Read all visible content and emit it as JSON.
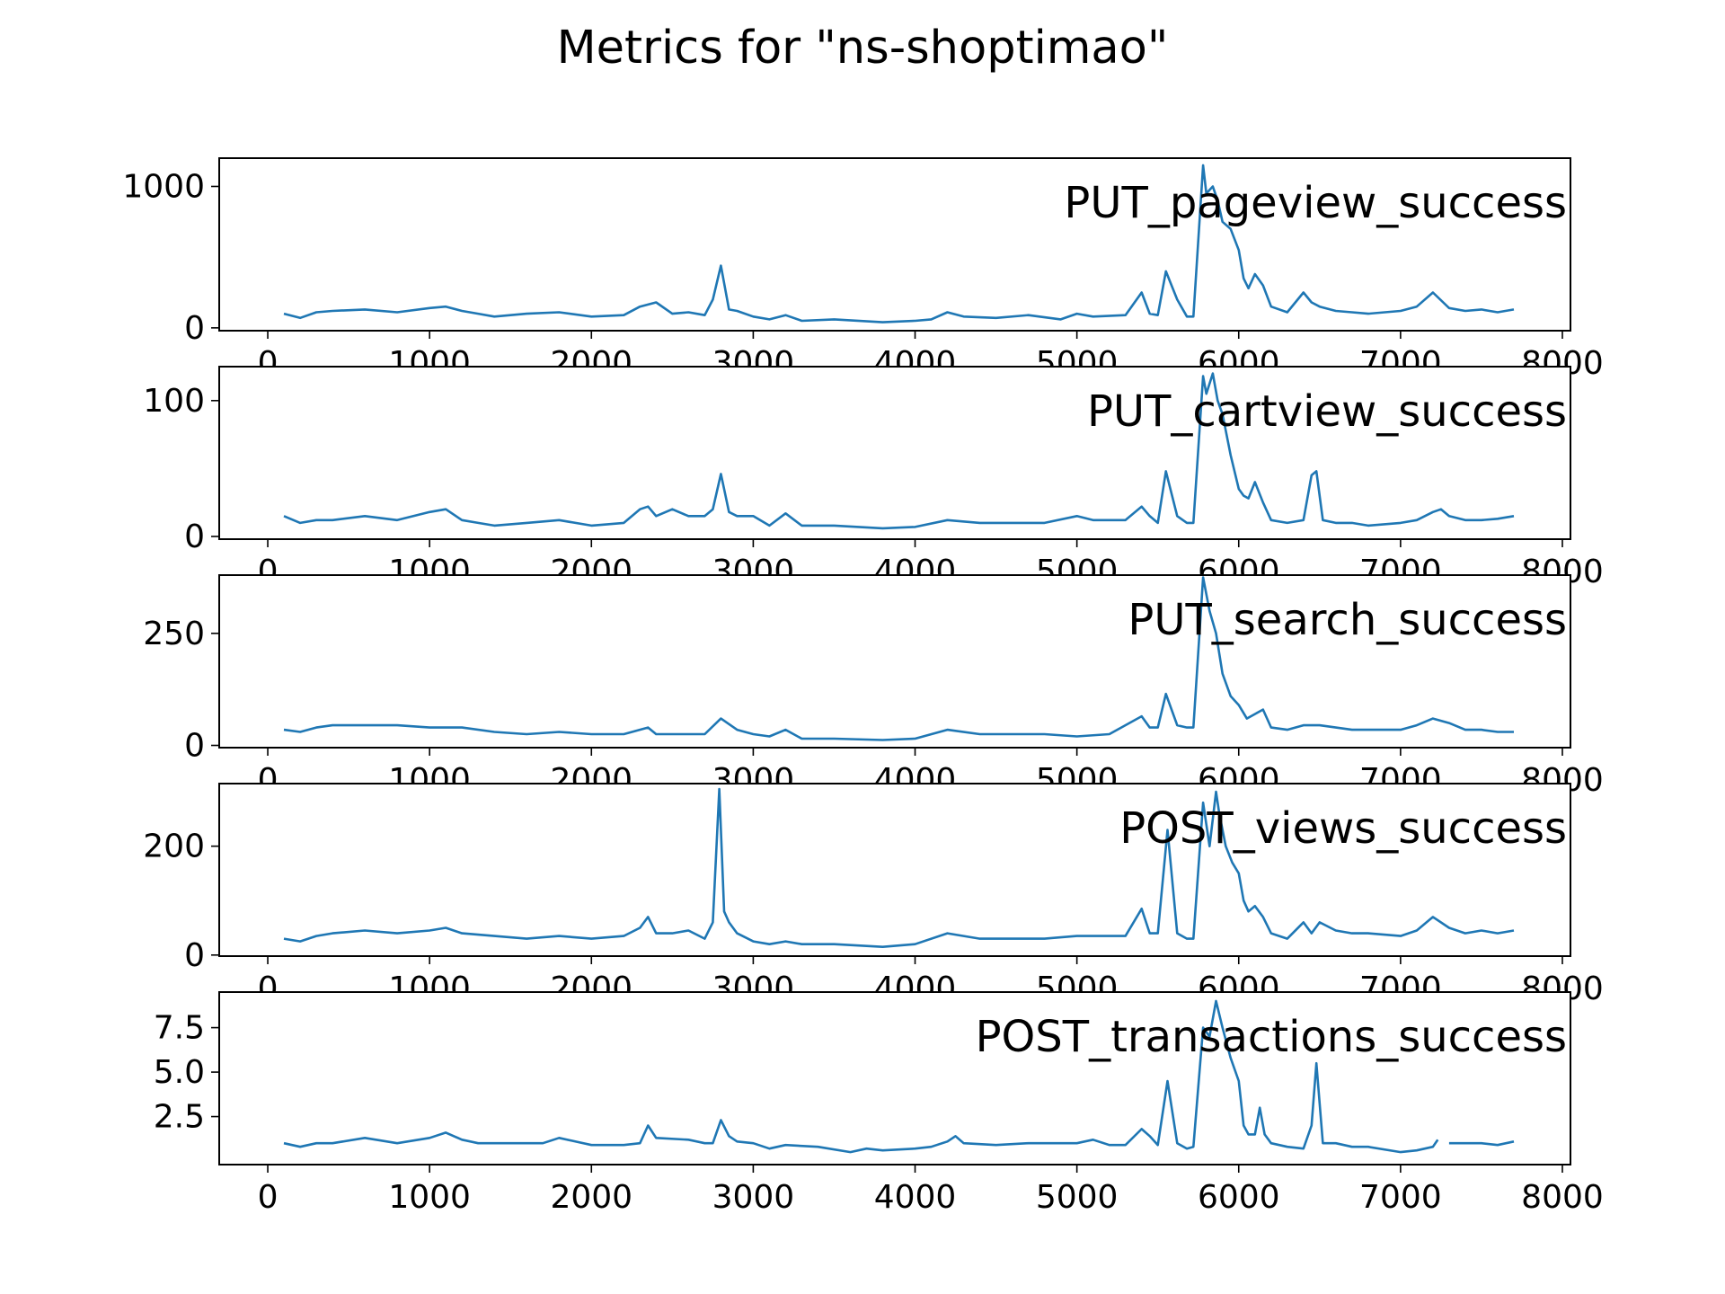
{
  "figure": {
    "title": "Metrics for \"ns-shoptimao\""
  },
  "style": {
    "line_color": "#1f77b4",
    "axis_color": "#000000",
    "background": "#ffffff"
  },
  "chart_data": [
    {
      "type": "line",
      "label": "PUT_pageview_success",
      "xlim": [
        -300,
        8050
      ],
      "ylim": [
        -20,
        1200
      ],
      "xticks": [
        0,
        1000,
        2000,
        3000,
        4000,
        5000,
        6000,
        7000,
        8000
      ],
      "xtick_labels": [
        "0",
        "1000",
        "2000",
        "3000",
        "4000",
        "5000",
        "6000",
        "7000",
        "8000"
      ],
      "yticks": [
        0,
        1000
      ],
      "ytick_labels": [
        "0",
        "1000"
      ],
      "grid": false,
      "x": [
        100,
        200,
        300,
        400,
        600,
        800,
        1000,
        1100,
        1200,
        1300,
        1400,
        1600,
        1800,
        2000,
        2200,
        2300,
        2400,
        2500,
        2600,
        2700,
        2750,
        2800,
        2850,
        2900,
        3000,
        3100,
        3200,
        3300,
        3500,
        3800,
        4000,
        4100,
        4200,
        4300,
        4500,
        4700,
        4900,
        5000,
        5100,
        5300,
        5400,
        5450,
        5500,
        5550,
        5620,
        5680,
        5720,
        5780,
        5800,
        5840,
        5870,
        5900,
        5950,
        6000,
        6030,
        6060,
        6100,
        6150,
        6200,
        6300,
        6400,
        6450,
        6500,
        6600,
        6700,
        6800,
        7000,
        7100,
        7200,
        7300,
        7400,
        7500,
        7600,
        7700
      ],
      "y": [
        100,
        70,
        110,
        120,
        130,
        110,
        140,
        150,
        120,
        100,
        80,
        100,
        110,
        80,
        90,
        150,
        180,
        100,
        110,
        90,
        200,
        440,
        130,
        120,
        80,
        60,
        90,
        50,
        60,
        40,
        50,
        60,
        110,
        80,
        70,
        90,
        60,
        100,
        80,
        90,
        250,
        100,
        90,
        400,
        200,
        80,
        80,
        1150,
        950,
        1000,
        900,
        750,
        700,
        550,
        350,
        280,
        380,
        300,
        150,
        110,
        250,
        180,
        150,
        120,
        110,
        100,
        120,
        150,
        250,
        140,
        120,
        130,
        110,
        130
      ]
    },
    {
      "type": "line",
      "label": "PUT_cartview_success",
      "xlim": [
        -300,
        8050
      ],
      "ylim": [
        -2,
        125
      ],
      "xticks": [
        0,
        1000,
        2000,
        3000,
        4000,
        5000,
        6000,
        7000,
        8000
      ],
      "xtick_labels": [
        "0",
        "1000",
        "2000",
        "3000",
        "4000",
        "5000",
        "6000",
        "7000",
        "8000"
      ],
      "yticks": [
        0,
        100
      ],
      "ytick_labels": [
        "0",
        "100"
      ],
      "grid": false,
      "x": [
        100,
        200,
        300,
        400,
        600,
        800,
        1000,
        1100,
        1200,
        1300,
        1400,
        1600,
        1800,
        2000,
        2200,
        2300,
        2350,
        2400,
        2500,
        2600,
        2700,
        2750,
        2800,
        2850,
        2900,
        3000,
        3100,
        3200,
        3300,
        3500,
        3800,
        4000,
        4200,
        4400,
        4600,
        4800,
        5000,
        5100,
        5300,
        5400,
        5450,
        5500,
        5550,
        5620,
        5680,
        5720,
        5780,
        5800,
        5840,
        5870,
        5900,
        5950,
        6000,
        6030,
        6060,
        6100,
        6150,
        6200,
        6300,
        6400,
        6450,
        6480,
        6520,
        6600,
        6700,
        6800,
        7000,
        7100,
        7200,
        7250,
        7300,
        7400,
        7500,
        7600,
        7700
      ],
      "y": [
        15,
        10,
        12,
        12,
        15,
        12,
        18,
        20,
        12,
        10,
        8,
        10,
        12,
        8,
        10,
        20,
        22,
        15,
        20,
        15,
        15,
        20,
        46,
        18,
        15,
        15,
        8,
        17,
        8,
        8,
        6,
        7,
        12,
        10,
        10,
        10,
        15,
        12,
        12,
        22,
        15,
        10,
        48,
        15,
        10,
        10,
        118,
        105,
        120,
        100,
        90,
        60,
        35,
        30,
        28,
        40,
        25,
        12,
        10,
        12,
        45,
        48,
        12,
        10,
        10,
        8,
        10,
        12,
        18,
        20,
        15,
        12,
        12,
        13,
        15
      ]
    },
    {
      "type": "line",
      "label": "PUT_search_success",
      "xlim": [
        -300,
        8050
      ],
      "ylim": [
        -5,
        380
      ],
      "xticks": [
        0,
        1000,
        2000,
        3000,
        4000,
        5000,
        6000,
        7000,
        8000
      ],
      "xtick_labels": [
        "0",
        "1000",
        "2000",
        "3000",
        "4000",
        "5000",
        "6000",
        "7000",
        "8000"
      ],
      "yticks": [
        0,
        250
      ],
      "ytick_labels": [
        "0",
        "250"
      ],
      "grid": false,
      "x": [
        100,
        200,
        300,
        400,
        600,
        800,
        1000,
        1200,
        1400,
        1600,
        1800,
        2000,
        2200,
        2350,
        2400,
        2600,
        2700,
        2800,
        2900,
        3000,
        3100,
        3200,
        3300,
        3500,
        3800,
        4000,
        4200,
        4400,
        4600,
        4800,
        5000,
        5200,
        5400,
        5450,
        5500,
        5550,
        5620,
        5680,
        5720,
        5780,
        5820,
        5860,
        5900,
        5950,
        6000,
        6050,
        6100,
        6150,
        6200,
        6300,
        6400,
        6500,
        6600,
        6700,
        6800,
        7000,
        7100,
        7200,
        7300,
        7400,
        7500,
        7600,
        7700
      ],
      "y": [
        35,
        30,
        40,
        45,
        45,
        45,
        40,
        40,
        30,
        25,
        30,
        25,
        25,
        40,
        25,
        25,
        25,
        60,
        35,
        25,
        20,
        35,
        15,
        15,
        12,
        15,
        35,
        25,
        25,
        25,
        20,
        25,
        65,
        40,
        40,
        115,
        45,
        40,
        40,
        375,
        300,
        250,
        160,
        110,
        90,
        60,
        70,
        80,
        40,
        35,
        45,
        45,
        40,
        35,
        35,
        35,
        45,
        60,
        50,
        35,
        35,
        30,
        30
      ]
    },
    {
      "type": "line",
      "label": "POST_views_success",
      "xlim": [
        -300,
        8050
      ],
      "ylim": [
        -2,
        315
      ],
      "xticks": [
        0,
        1000,
        2000,
        3000,
        4000,
        5000,
        6000,
        7000,
        8000
      ],
      "xtick_labels": [
        "0",
        "1000",
        "2000",
        "3000",
        "4000",
        "5000",
        "6000",
        "7000",
        "8000"
      ],
      "yticks": [
        0,
        200
      ],
      "ytick_labels": [
        "0",
        "200"
      ],
      "grid": false,
      "x": [
        100,
        200,
        300,
        400,
        600,
        800,
        1000,
        1100,
        1200,
        1400,
        1600,
        1800,
        2000,
        2200,
        2300,
        2350,
        2400,
        2500,
        2600,
        2700,
        2750,
        2790,
        2820,
        2850,
        2900,
        3000,
        3100,
        3200,
        3300,
        3500,
        3800,
        4000,
        4200,
        4400,
        4600,
        4800,
        5000,
        5100,
        5300,
        5400,
        5450,
        5500,
        5560,
        5620,
        5680,
        5720,
        5780,
        5820,
        5860,
        5880,
        5920,
        5960,
        6000,
        6030,
        6060,
        6100,
        6150,
        6200,
        6300,
        6400,
        6450,
        6500,
        6600,
        6700,
        6800,
        7000,
        7100,
        7200,
        7300,
        7400,
        7500,
        7600,
        7700
      ],
      "y": [
        30,
        25,
        35,
        40,
        45,
        40,
        45,
        50,
        40,
        35,
        30,
        35,
        30,
        35,
        50,
        70,
        40,
        40,
        45,
        30,
        60,
        305,
        80,
        60,
        40,
        25,
        20,
        25,
        20,
        20,
        15,
        20,
        40,
        30,
        30,
        30,
        35,
        35,
        35,
        85,
        40,
        40,
        230,
        40,
        30,
        30,
        280,
        200,
        300,
        260,
        200,
        170,
        150,
        100,
        80,
        90,
        70,
        40,
        30,
        60,
        40,
        60,
        45,
        40,
        40,
        35,
        45,
        70,
        50,
        40,
        45,
        40,
        45
      ]
    },
    {
      "type": "line",
      "label": "POST_transactions_success",
      "xlim": [
        -300,
        8050
      ],
      "ylim": [
        -0.2,
        9.5
      ],
      "xticks": [
        0,
        1000,
        2000,
        3000,
        4000,
        5000,
        6000,
        7000,
        8000
      ],
      "xtick_labels": [
        "0",
        "1000",
        "2000",
        "3000",
        "4000",
        "5000",
        "6000",
        "7000",
        "8000"
      ],
      "yticks": [
        2.5,
        5.0,
        7.5
      ],
      "ytick_labels": [
        "2.5",
        "5.0",
        "7.5"
      ],
      "grid": false,
      "x": [
        100,
        200,
        300,
        400,
        600,
        800,
        1000,
        1100,
        1200,
        1300,
        1500,
        1700,
        1800,
        2000,
        2200,
        2300,
        2350,
        2400,
        2600,
        2700,
        2750,
        2800,
        2850,
        2900,
        3000,
        3100,
        3200,
        3400,
        3600,
        3700,
        3800,
        4000,
        4100,
        4200,
        4250,
        4300,
        4500,
        4700,
        4900,
        5000,
        5100,
        5200,
        5300,
        5400,
        5450,
        5500,
        5560,
        5620,
        5680,
        5720,
        5780,
        5820,
        5860,
        5900,
        5950,
        6000,
        6030,
        6060,
        6100,
        6130,
        6160,
        6200,
        6300,
        6400,
        6450,
        6480,
        6520,
        6600,
        6700,
        6800,
        7000,
        7100,
        7200,
        7230,
        null,
        7300,
        7400,
        7500,
        7600,
        7700
      ],
      "y": [
        1.0,
        0.8,
        1.0,
        1.0,
        1.3,
        1.0,
        1.3,
        1.6,
        1.2,
        1.0,
        1.0,
        1.0,
        1.3,
        0.9,
        0.9,
        1.0,
        2.0,
        1.3,
        1.2,
        1.0,
        1.0,
        2.3,
        1.4,
        1.1,
        1.0,
        0.7,
        0.9,
        0.8,
        0.5,
        0.7,
        0.6,
        0.7,
        0.8,
        1.1,
        1.4,
        1.0,
        0.9,
        1.0,
        1.0,
        1.0,
        1.2,
        0.9,
        0.9,
        1.8,
        1.4,
        0.9,
        4.5,
        1.0,
        0.7,
        0.8,
        7.5,
        7.0,
        9.0,
        7.5,
        5.8,
        4.5,
        2.0,
        1.5,
        1.5,
        3.0,
        1.5,
        1.0,
        0.8,
        0.7,
        2.0,
        5.5,
        1.0,
        1.0,
        0.8,
        0.8,
        0.5,
        0.6,
        0.8,
        1.2,
        null,
        1.0,
        1.0,
        1.0,
        0.9,
        1.1
      ]
    }
  ]
}
